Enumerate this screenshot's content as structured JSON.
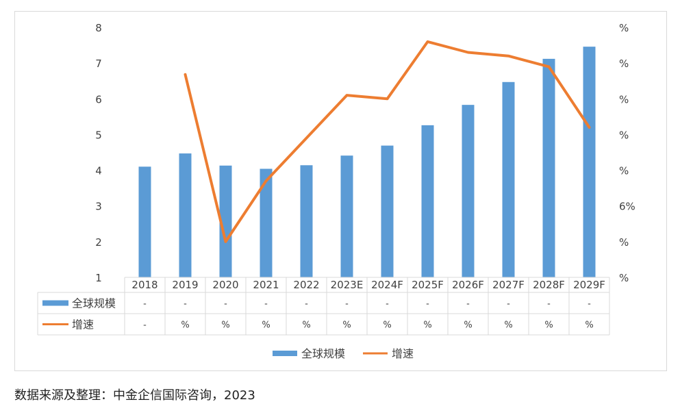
{
  "chart_data": {
    "type": "bar",
    "categories": [
      "2018",
      "2019",
      "2020",
      "2021",
      "2022",
      "2023E",
      "2024F",
      "2025F",
      "2026F",
      "2027F",
      "2028F",
      "2029F"
    ],
    "series": [
      {
        "name": "全球规模",
        "kind": "bar",
        "axis": "left",
        "color": "#5b9bd5",
        "values": [
          4.1,
          4.47,
          4.13,
          4.04,
          4.14,
          4.41,
          4.69,
          5.26,
          5.83,
          6.47,
          7.12,
          7.46
        ]
      },
      {
        "name": "增速",
        "kind": "line",
        "axis": "right",
        "color": "#ed7d31",
        "values": [
          null,
          6.68,
          2.0,
          3.7,
          4.9,
          6.1,
          6.0,
          7.6,
          7.3,
          7.2,
          6.9,
          5.2
        ]
      }
    ],
    "left_axis": {
      "ticks": [
        "1",
        "2",
        "3",
        "4",
        "5",
        "6",
        "7",
        "8"
      ],
      "ylim": [
        1,
        8
      ]
    },
    "right_axis": {
      "ticks": [
        "%",
        "%",
        "6%",
        "%",
        "%",
        "%",
        "%",
        "%"
      ],
      "ylim": [
        1,
        8
      ]
    },
    "table": {
      "rows": [
        {
          "label": "全球规模",
          "cells": [
            "-",
            "-",
            "-",
            "-",
            "-",
            "-",
            "-",
            "-",
            "-",
            "-",
            "-",
            "-"
          ]
        },
        {
          "label": "增速",
          "cells": [
            "-",
            "%",
            "%",
            "%",
            "%",
            "%",
            "%",
            "%",
            "%",
            "%",
            "%",
            "%"
          ]
        }
      ]
    },
    "legend": {
      "position": "bottom",
      "items": [
        "全球规模",
        "增速"
      ]
    },
    "grid": false
  },
  "source_note": "数据来源及整理：中金企信国际咨询，2023"
}
